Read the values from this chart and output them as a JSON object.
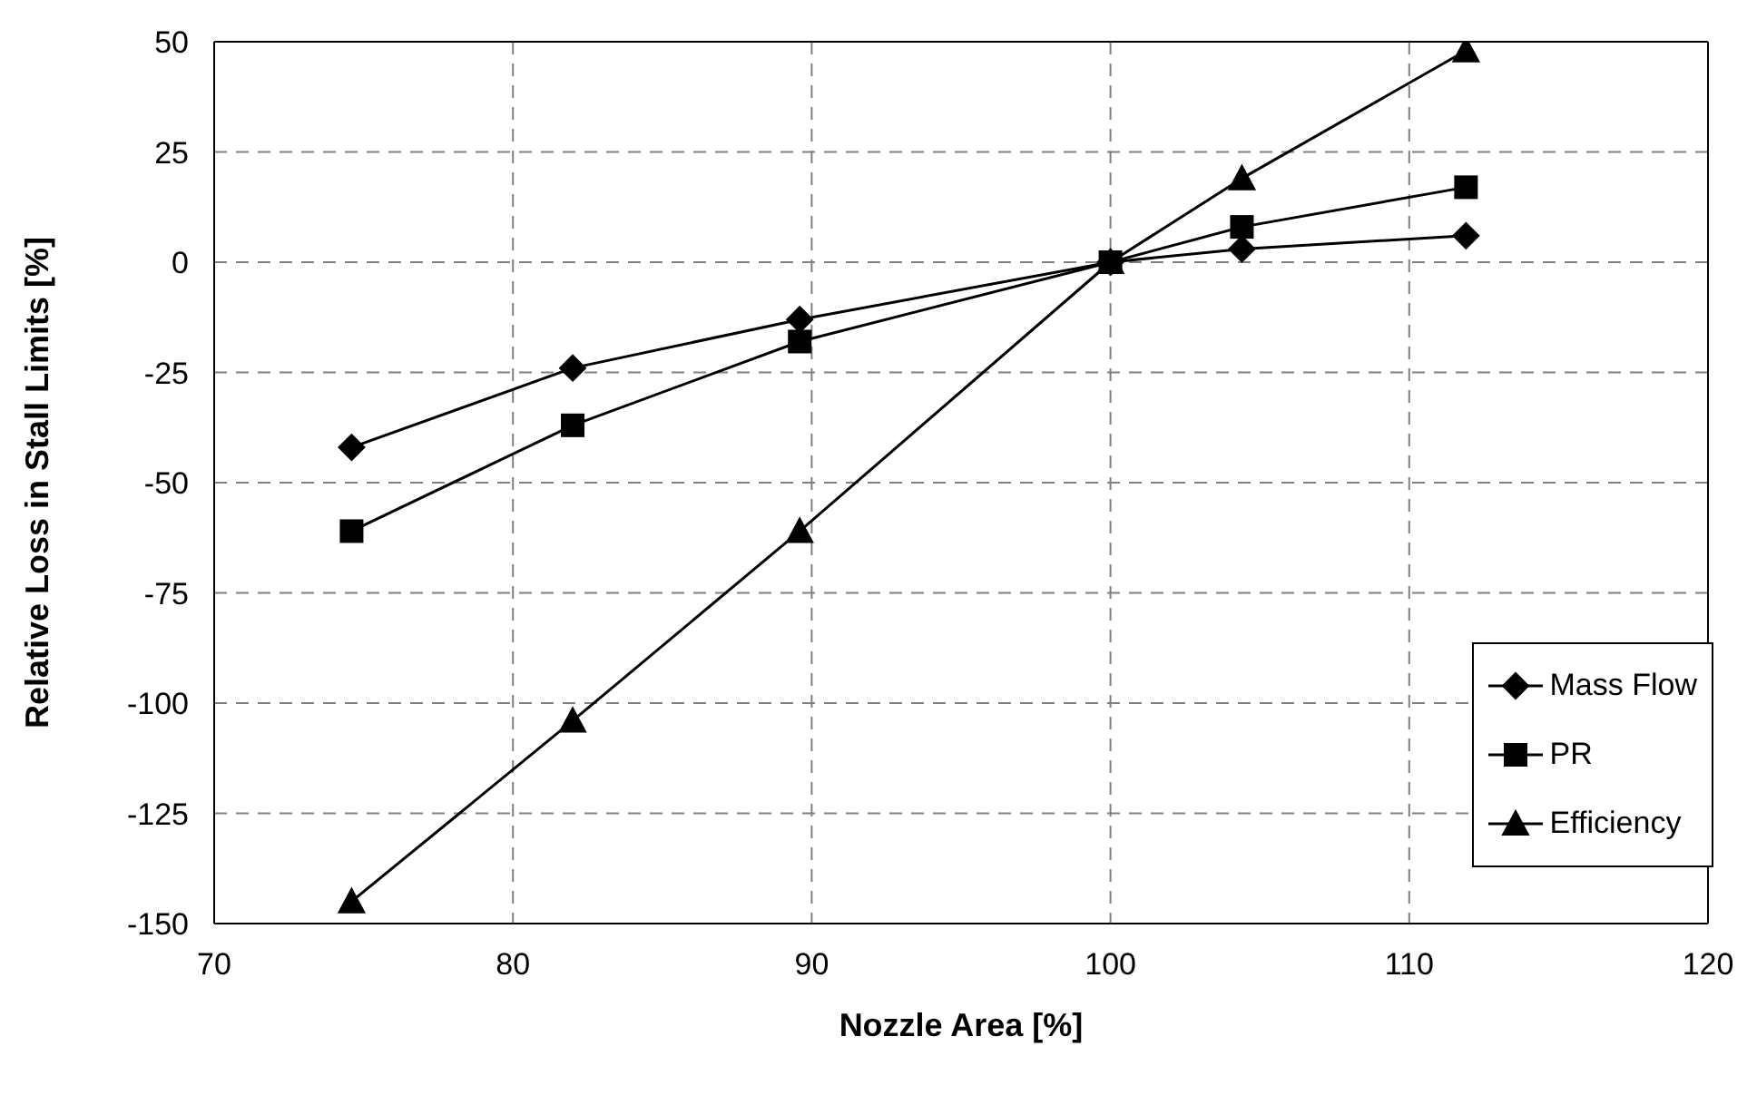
{
  "chart_data": {
    "type": "line",
    "xlabel": "Nozzle Area [%]",
    "ylabel": "Relative Loss in Stall Limits [%]",
    "x": [
      74.6,
      82.0,
      89.6,
      100,
      104.4,
      111.9
    ],
    "series": [
      {
        "name": "Mass Flow",
        "color": "#000000",
        "marker": "diamond",
        "values": [
          -42,
          -24,
          -13,
          0,
          3,
          6
        ]
      },
      {
        "name": "PR",
        "color": "#000000",
        "marker": "square",
        "values": [
          -61,
          -37,
          -18,
          0,
          8,
          17
        ]
      },
      {
        "name": "Efficiency",
        "color": "#000000",
        "marker": "triangle",
        "values": [
          -145,
          -104,
          -61,
          0,
          19,
          48
        ]
      }
    ],
    "xlim": [
      70,
      120
    ],
    "xticks": [
      70,
      80,
      90,
      100,
      110,
      120
    ],
    "ylim": [
      -150,
      50
    ],
    "yticks": [
      -150,
      -125,
      -100,
      -75,
      -50,
      -25,
      0,
      25,
      50
    ],
    "grid": true,
    "legend": "bottom right",
    "line_style": "solid"
  }
}
